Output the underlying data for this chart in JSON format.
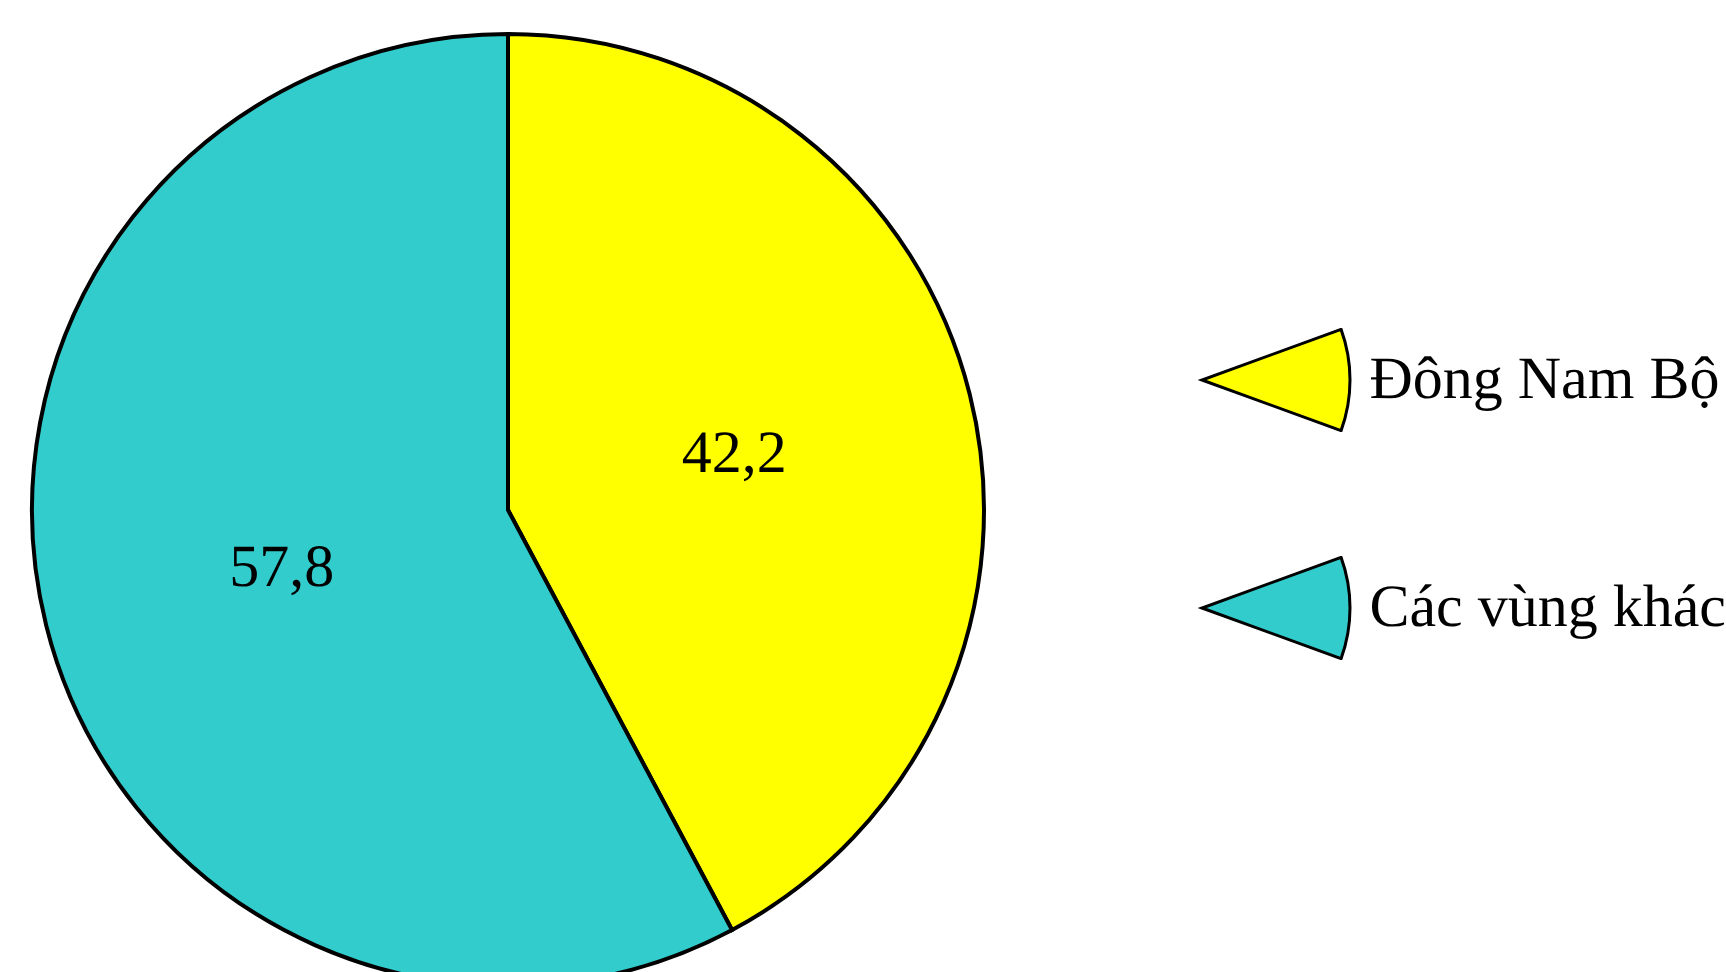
{
  "chart_data": {
    "type": "pie",
    "categories": [
      "Đông Nam Bộ",
      "Các vùng khác"
    ],
    "values": [
      42.2,
      57.8
    ],
    "colors": [
      "#ffff00",
      "#33cccc"
    ],
    "value_labels": [
      "42,2",
      "57,8"
    ],
    "legend": "right"
  }
}
